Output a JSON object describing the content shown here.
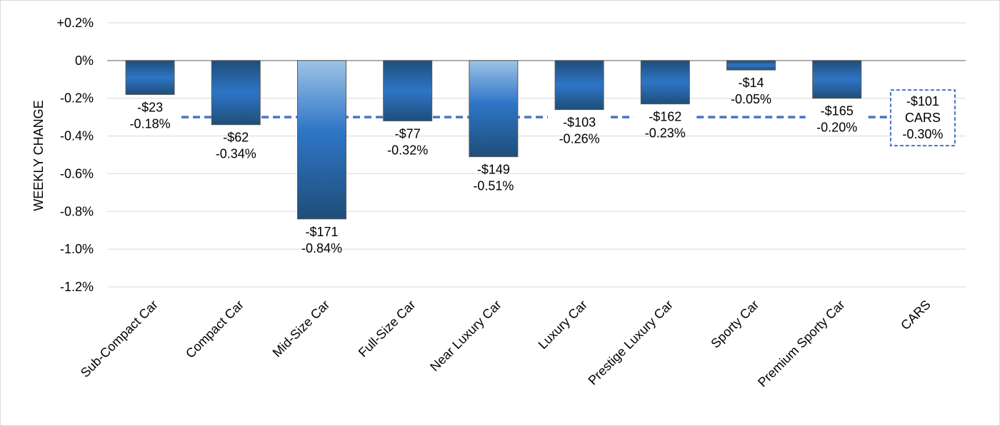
{
  "chart_data": {
    "type": "bar",
    "ylabel": "WEEKLY CHANGE",
    "xlabel": "",
    "ylim": [
      -1.2,
      0.2
    ],
    "yticks": [
      0.2,
      0,
      -0.2,
      -0.4,
      -0.6,
      -0.8,
      -1.0,
      -1.2
    ],
    "ytick_labels": [
      "+0.2%",
      "0%",
      "-0.2%",
      "-0.4%",
      "-0.6%",
      "-0.8%",
      "-1.0%",
      "-1.2%"
    ],
    "grid": true,
    "categories": [
      "Sub-Compact Car",
      "Compact Car",
      "Mid-Size Car",
      "Full-Size Car",
      "Near Luxury Car",
      "Luxury Car",
      "Prestige Luxury Car",
      "Sporty Car",
      "Premium Sporty Car",
      "CARS"
    ],
    "values": [
      -0.18,
      -0.34,
      -0.84,
      -0.32,
      -0.51,
      -0.26,
      -0.23,
      -0.05,
      -0.2,
      null
    ],
    "dollar_labels": [
      "-$23",
      "-$62",
      "-$171",
      "-$77",
      "-$149",
      "-$103",
      "-$162",
      "-$14",
      "-$165",
      "-$101"
    ],
    "percent_labels": [
      "-0.18%",
      "-0.34%",
      "-0.84%",
      "-0.32%",
      "-0.51%",
      "-0.26%",
      "-0.23%",
      "-0.05%",
      "-0.20%",
      "-0.30%"
    ],
    "reference_line": {
      "value": -0.3,
      "dollar_label": "-$101",
      "name_label": "CARS",
      "percent_label": "-0.30%",
      "color": "#4a72c4",
      "style": "dashed"
    },
    "colors": {
      "bar_dark": "#1f4e79",
      "bar_mid": "#2e75c6",
      "bar_light": "#9dc3e6",
      "bar_border": "#595959",
      "grid": "#d9d9d9",
      "axis": "#7f7f7f"
    }
  }
}
